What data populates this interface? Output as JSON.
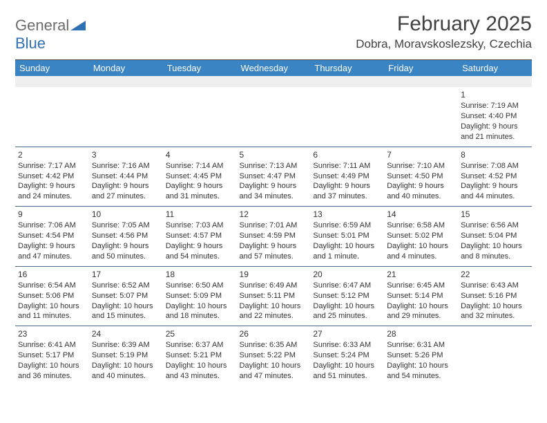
{
  "brand": {
    "word1": "General",
    "word2": "Blue"
  },
  "title": "February 2025",
  "location": "Dobra, Moravskoslezsky, Czechia",
  "colors": {
    "header_bg": "#3a84c4",
    "header_text": "#ffffff",
    "spacer_bg": "#efefef",
    "brand_gray": "#6b6b6b",
    "brand_blue": "#2f6fb3",
    "text": "#333333",
    "divider": "#4a4a4a",
    "cell_border": "#4a6a8a"
  },
  "typography": {
    "title_fontsize": 30,
    "location_fontsize": 17,
    "header_fontsize": 13,
    "cell_fontsize": 11,
    "daynum_fontsize": 12
  },
  "day_headers": [
    "Sunday",
    "Monday",
    "Tuesday",
    "Wednesday",
    "Thursday",
    "Friday",
    "Saturday"
  ],
  "weeks": [
    [
      null,
      null,
      null,
      null,
      null,
      null,
      {
        "n": "1",
        "sr": "Sunrise: 7:19 AM",
        "ss": "Sunset: 4:40 PM",
        "dl1": "Daylight: 9 hours",
        "dl2": "and 21 minutes."
      }
    ],
    [
      {
        "n": "2",
        "sr": "Sunrise: 7:17 AM",
        "ss": "Sunset: 4:42 PM",
        "dl1": "Daylight: 9 hours",
        "dl2": "and 24 minutes."
      },
      {
        "n": "3",
        "sr": "Sunrise: 7:16 AM",
        "ss": "Sunset: 4:44 PM",
        "dl1": "Daylight: 9 hours",
        "dl2": "and 27 minutes."
      },
      {
        "n": "4",
        "sr": "Sunrise: 7:14 AM",
        "ss": "Sunset: 4:45 PM",
        "dl1": "Daylight: 9 hours",
        "dl2": "and 31 minutes."
      },
      {
        "n": "5",
        "sr": "Sunrise: 7:13 AM",
        "ss": "Sunset: 4:47 PM",
        "dl1": "Daylight: 9 hours",
        "dl2": "and 34 minutes."
      },
      {
        "n": "6",
        "sr": "Sunrise: 7:11 AM",
        "ss": "Sunset: 4:49 PM",
        "dl1": "Daylight: 9 hours",
        "dl2": "and 37 minutes."
      },
      {
        "n": "7",
        "sr": "Sunrise: 7:10 AM",
        "ss": "Sunset: 4:50 PM",
        "dl1": "Daylight: 9 hours",
        "dl2": "and 40 minutes."
      },
      {
        "n": "8",
        "sr": "Sunrise: 7:08 AM",
        "ss": "Sunset: 4:52 PM",
        "dl1": "Daylight: 9 hours",
        "dl2": "and 44 minutes."
      }
    ],
    [
      {
        "n": "9",
        "sr": "Sunrise: 7:06 AM",
        "ss": "Sunset: 4:54 PM",
        "dl1": "Daylight: 9 hours",
        "dl2": "and 47 minutes."
      },
      {
        "n": "10",
        "sr": "Sunrise: 7:05 AM",
        "ss": "Sunset: 4:56 PM",
        "dl1": "Daylight: 9 hours",
        "dl2": "and 50 minutes."
      },
      {
        "n": "11",
        "sr": "Sunrise: 7:03 AM",
        "ss": "Sunset: 4:57 PM",
        "dl1": "Daylight: 9 hours",
        "dl2": "and 54 minutes."
      },
      {
        "n": "12",
        "sr": "Sunrise: 7:01 AM",
        "ss": "Sunset: 4:59 PM",
        "dl1": "Daylight: 9 hours",
        "dl2": "and 57 minutes."
      },
      {
        "n": "13",
        "sr": "Sunrise: 6:59 AM",
        "ss": "Sunset: 5:01 PM",
        "dl1": "Daylight: 10 hours",
        "dl2": "and 1 minute."
      },
      {
        "n": "14",
        "sr": "Sunrise: 6:58 AM",
        "ss": "Sunset: 5:02 PM",
        "dl1": "Daylight: 10 hours",
        "dl2": "and 4 minutes."
      },
      {
        "n": "15",
        "sr": "Sunrise: 6:56 AM",
        "ss": "Sunset: 5:04 PM",
        "dl1": "Daylight: 10 hours",
        "dl2": "and 8 minutes."
      }
    ],
    [
      {
        "n": "16",
        "sr": "Sunrise: 6:54 AM",
        "ss": "Sunset: 5:06 PM",
        "dl1": "Daylight: 10 hours",
        "dl2": "and 11 minutes."
      },
      {
        "n": "17",
        "sr": "Sunrise: 6:52 AM",
        "ss": "Sunset: 5:07 PM",
        "dl1": "Daylight: 10 hours",
        "dl2": "and 15 minutes."
      },
      {
        "n": "18",
        "sr": "Sunrise: 6:50 AM",
        "ss": "Sunset: 5:09 PM",
        "dl1": "Daylight: 10 hours",
        "dl2": "and 18 minutes."
      },
      {
        "n": "19",
        "sr": "Sunrise: 6:49 AM",
        "ss": "Sunset: 5:11 PM",
        "dl1": "Daylight: 10 hours",
        "dl2": "and 22 minutes."
      },
      {
        "n": "20",
        "sr": "Sunrise: 6:47 AM",
        "ss": "Sunset: 5:12 PM",
        "dl1": "Daylight: 10 hours",
        "dl2": "and 25 minutes."
      },
      {
        "n": "21",
        "sr": "Sunrise: 6:45 AM",
        "ss": "Sunset: 5:14 PM",
        "dl1": "Daylight: 10 hours",
        "dl2": "and 29 minutes."
      },
      {
        "n": "22",
        "sr": "Sunrise: 6:43 AM",
        "ss": "Sunset: 5:16 PM",
        "dl1": "Daylight: 10 hours",
        "dl2": "and 32 minutes."
      }
    ],
    [
      {
        "n": "23",
        "sr": "Sunrise: 6:41 AM",
        "ss": "Sunset: 5:17 PM",
        "dl1": "Daylight: 10 hours",
        "dl2": "and 36 minutes."
      },
      {
        "n": "24",
        "sr": "Sunrise: 6:39 AM",
        "ss": "Sunset: 5:19 PM",
        "dl1": "Daylight: 10 hours",
        "dl2": "and 40 minutes."
      },
      {
        "n": "25",
        "sr": "Sunrise: 6:37 AM",
        "ss": "Sunset: 5:21 PM",
        "dl1": "Daylight: 10 hours",
        "dl2": "and 43 minutes."
      },
      {
        "n": "26",
        "sr": "Sunrise: 6:35 AM",
        "ss": "Sunset: 5:22 PM",
        "dl1": "Daylight: 10 hours",
        "dl2": "and 47 minutes."
      },
      {
        "n": "27",
        "sr": "Sunrise: 6:33 AM",
        "ss": "Sunset: 5:24 PM",
        "dl1": "Daylight: 10 hours",
        "dl2": "and 51 minutes."
      },
      {
        "n": "28",
        "sr": "Sunrise: 6:31 AM",
        "ss": "Sunset: 5:26 PM",
        "dl1": "Daylight: 10 hours",
        "dl2": "and 54 minutes."
      },
      null
    ]
  ]
}
